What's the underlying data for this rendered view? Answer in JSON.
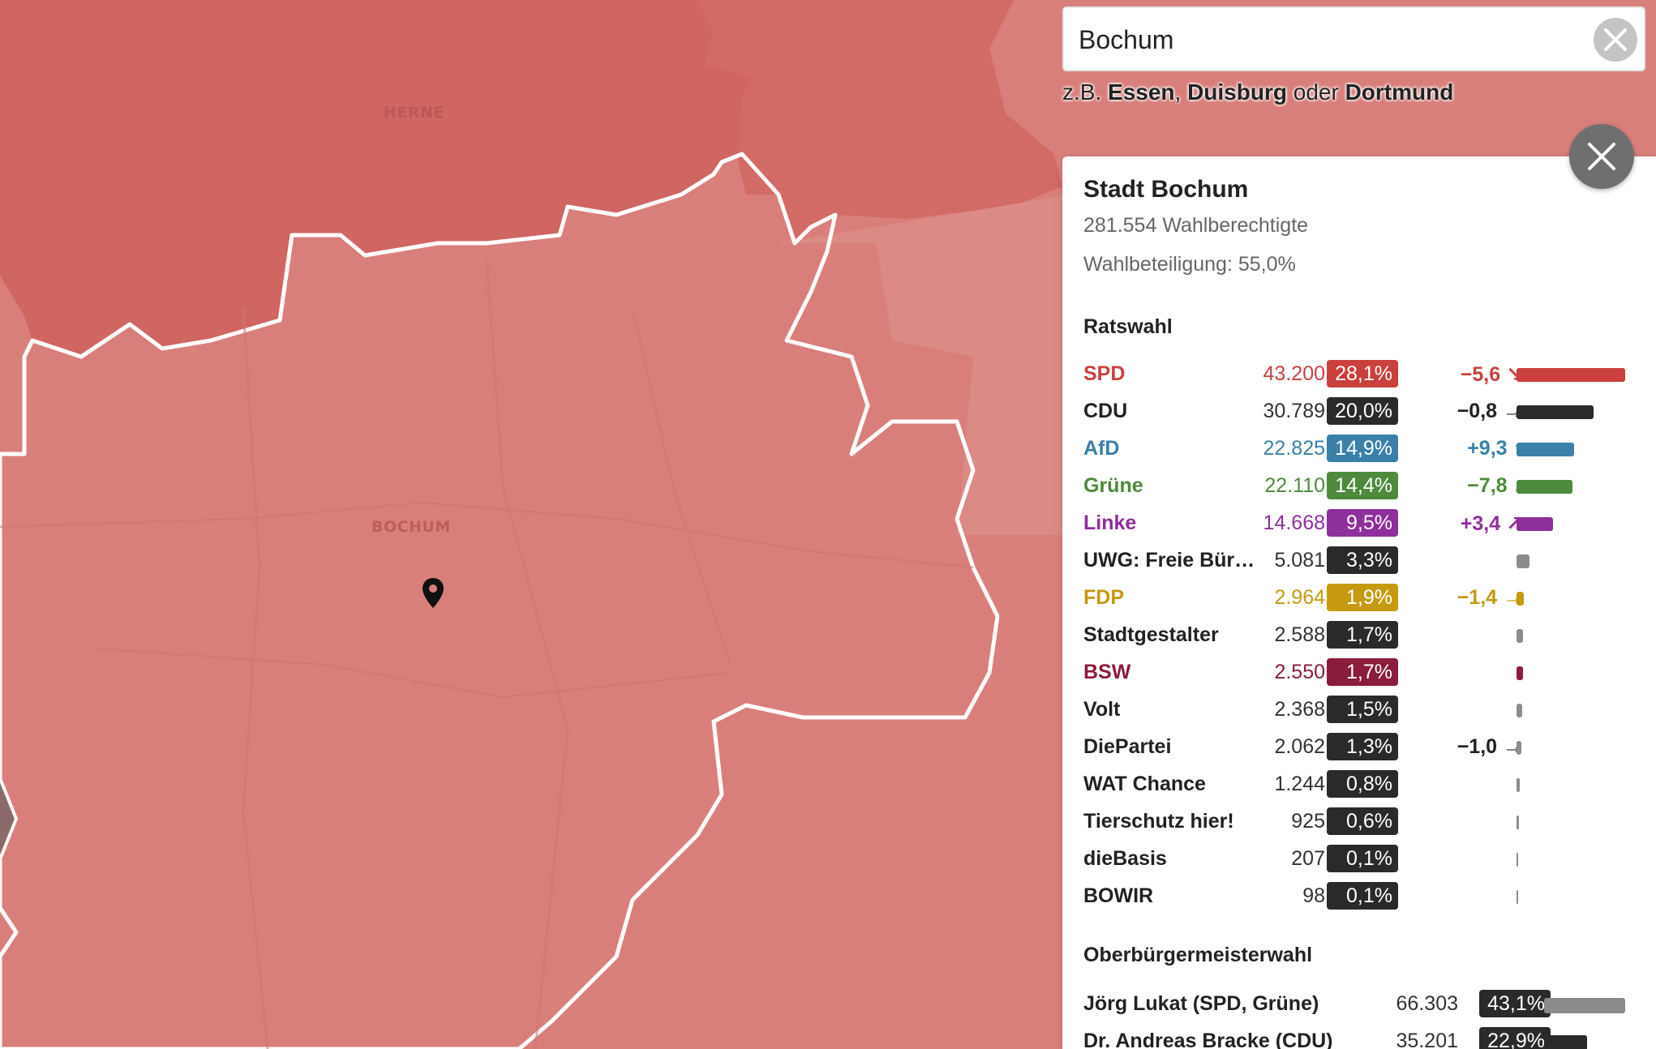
{
  "map": {
    "labels": {
      "herne": "HERNE",
      "bochum": "BOCHUM"
    }
  },
  "search": {
    "value": "Bochum",
    "clear_icon": "close-icon",
    "examples_prefix": "z.B.",
    "example_1": "Essen",
    "example_sep_1": ",",
    "example_2": "Duisburg",
    "example_sep_2": "oder",
    "example_3": "Dortmund"
  },
  "panel": {
    "close_icon": "close-icon",
    "title": "Stadt Bochum",
    "eligible": "281.554 Wahlberechtigte",
    "turnout": "Wahlbeteiligung: 55,0%",
    "council": {
      "heading": "Ratswahl",
      "rows": [
        {
          "party": "SPD",
          "votes": "43.200",
          "pct": "28,1%",
          "change": "−5,6 ↘",
          "color": "#c9403d",
          "share": 0.281
        },
        {
          "party": "CDU",
          "votes": "30.789",
          "pct": "20,0%",
          "change": "−0,8 →",
          "color": "#2a2a2a",
          "share": 0.2
        },
        {
          "party": "AfD",
          "votes": "22.825",
          "pct": "14,9%",
          "change": "+9,3 ↑",
          "color": "#3a80a8",
          "share": 0.149
        },
        {
          "party": "Grüne",
          "votes": "22.110",
          "pct": "14,4%",
          "change": "−7,8 ↓",
          "color": "#4d8a3c",
          "share": 0.144
        },
        {
          "party": "Linke",
          "votes": "14.668",
          "pct": "9,5%",
          "change": "+3,4 ↗",
          "color": "#8e2f9c",
          "share": 0.095
        },
        {
          "party": "UWG: Freie Bür…",
          "votes": "5.081",
          "pct": "3,3%",
          "change": "",
          "color": "#2a2a2a",
          "share": 0.033
        },
        {
          "party": "FDP",
          "votes": "2.964",
          "pct": "1,9%",
          "change": "−1,4 →",
          "color": "#c59a10",
          "share": 0.019
        },
        {
          "party": "Stadtgestalter",
          "votes": "2.588",
          "pct": "1,7%",
          "change": "",
          "color": "#2a2a2a",
          "share": 0.017
        },
        {
          "party": "BSW",
          "votes": "2.550",
          "pct": "1,7%",
          "change": "",
          "color": "#8a1c3c",
          "share": 0.017
        },
        {
          "party": "Volt",
          "votes": "2.368",
          "pct": "1,5%",
          "change": "",
          "color": "#2a2a2a",
          "share": 0.015
        },
        {
          "party": "DiePartei",
          "votes": "2.062",
          "pct": "1,3%",
          "change": "−1,0 →",
          "color": "#2a2a2a",
          "share": 0.013
        },
        {
          "party": "WAT Chance",
          "votes": "1.244",
          "pct": "0,8%",
          "change": "",
          "color": "#2a2a2a",
          "share": 0.008
        },
        {
          "party": "Tierschutz hier!",
          "votes": "925",
          "pct": "0,6%",
          "change": "",
          "color": "#2a2a2a",
          "share": 0.006
        },
        {
          "party": "dieBasis",
          "votes": "207",
          "pct": "0,1%",
          "change": "",
          "color": "#2a2a2a",
          "share": 0.001
        },
        {
          "party": "BOWIR",
          "votes": "98",
          "pct": "0,1%",
          "change": "",
          "color": "#2a2a2a",
          "share": 0.001
        }
      ]
    },
    "mayor": {
      "heading": "Oberbürgermeisterwahl",
      "rows": [
        {
          "name": "Jörg Lukat (SPD, Grüne)",
          "votes": "66.303",
          "pct": "43,1%",
          "color": "#8a8a8a",
          "share": 0.431
        },
        {
          "name": "Dr. Andreas Bracke (CDU)",
          "votes": "35.201",
          "pct": "22,9%",
          "color": "#2a2a2a",
          "share": 0.229
        }
      ]
    }
  }
}
